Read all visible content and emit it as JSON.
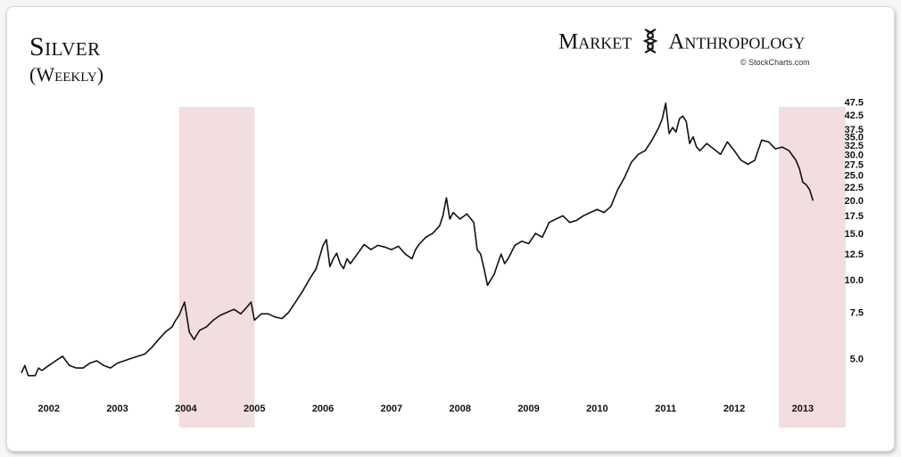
{
  "header": {
    "title": "Silver",
    "subtitle": "(Weekly)",
    "brand_left": "Market",
    "brand_right": "Anthropology",
    "copyright": "© StockCharts.com"
  },
  "chart_data": {
    "type": "line",
    "title": "Silver",
    "subtitle": "(Weekly)",
    "xlabel": "",
    "ylabel": "",
    "y_scale": "log",
    "ylim": [
      3.5,
      50
    ],
    "xlim": [
      2001.9,
      2013.9
    ],
    "grid": false,
    "line_color": "#111111",
    "highlight_color": "#f2dede",
    "x_ticks": [
      {
        "label": "2002",
        "value": 2002.3
      },
      {
        "label": "2003",
        "value": 2003.3
      },
      {
        "label": "2004",
        "value": 2004.3
      },
      {
        "label": "2005",
        "value": 2005.3
      },
      {
        "label": "2006",
        "value": 2006.3
      },
      {
        "label": "2007",
        "value": 2007.3
      },
      {
        "label": "2008",
        "value": 2008.3
      },
      {
        "label": "2009",
        "value": 2009.3
      },
      {
        "label": "2010",
        "value": 2010.3
      },
      {
        "label": "2011",
        "value": 2011.3
      },
      {
        "label": "2012",
        "value": 2012.3
      },
      {
        "label": "2013",
        "value": 2013.3
      }
    ],
    "y_ticks": [
      {
        "label": "5.0",
        "value": 5.0
      },
      {
        "label": "7.5",
        "value": 7.5
      },
      {
        "label": "10.0",
        "value": 10.0
      },
      {
        "label": "12.5",
        "value": 12.5
      },
      {
        "label": "15.0",
        "value": 15.0
      },
      {
        "label": "17.5",
        "value": 17.5
      },
      {
        "label": "20.0",
        "value": 20.0
      },
      {
        "label": "22.5",
        "value": 22.5
      },
      {
        "label": "25.0",
        "value": 25.0
      },
      {
        "label": "27.5",
        "value": 27.5
      },
      {
        "label": "30.0",
        "value": 30.0
      },
      {
        "label": "32.5",
        "value": 32.5
      },
      {
        "label": "35.0",
        "value": 35.0
      },
      {
        "label": "37.5",
        "value": 37.5
      },
      {
        "label": "42.5",
        "value": 42.5
      },
      {
        "label": "47.5",
        "value": 47.5
      }
    ],
    "highlight_ranges": [
      {
        "from": 2004.2,
        "to": 2005.3
      },
      {
        "from": 2012.95,
        "to": 2014.0
      }
    ],
    "series": [
      {
        "x": [
          2001.9,
          2001.95,
          2002.0,
          2002.1,
          2002.15,
          2002.2,
          2002.3,
          2002.4,
          2002.5,
          2002.6,
          2002.7,
          2002.8,
          2002.85,
          2002.9,
          2003.0,
          2003.1,
          2003.2,
          2003.3,
          2003.4,
          2003.5,
          2003.6,
          2003.7,
          2003.8,
          2003.9,
          2004.0,
          2004.1,
          2004.15,
          2004.2,
          2004.28,
          2004.35,
          2004.42,
          2004.45,
          2004.5,
          2004.6,
          2004.7,
          2004.8,
          2004.9,
          2005.0,
          2005.1,
          2005.2,
          2005.25,
          2005.3,
          2005.35,
          2005.4,
          2005.5,
          2005.6,
          2005.7,
          2005.8,
          2005.9,
          2006.0,
          2006.1,
          2006.2,
          2006.3,
          2006.35,
          2006.4,
          2006.45,
          2006.5,
          2006.55,
          2006.6,
          2006.65,
          2006.7,
          2006.8,
          2006.9,
          2007.0,
          2007.1,
          2007.2,
          2007.3,
          2007.4,
          2007.5,
          2007.6,
          2007.65,
          2007.7,
          2007.8,
          2007.9,
          2008.0,
          2008.05,
          2008.1,
          2008.15,
          2008.2,
          2008.3,
          2008.4,
          2008.5,
          2008.55,
          2008.6,
          2008.65,
          2008.7,
          2008.75,
          2008.8,
          2008.85,
          2008.9,
          2008.95,
          2009.0,
          2009.1,
          2009.2,
          2009.3,
          2009.4,
          2009.5,
          2009.6,
          2009.7,
          2009.8,
          2009.9,
          2010.0,
          2010.1,
          2010.2,
          2010.3,
          2010.4,
          2010.5,
          2010.6,
          2010.7,
          2010.8,
          2010.9,
          2011.0,
          2011.1,
          2011.2,
          2011.25,
          2011.3,
          2011.35,
          2011.4,
          2011.45,
          2011.5,
          2011.55,
          2011.6,
          2011.65,
          2011.7,
          2011.75,
          2011.8,
          2011.9,
          2012.0,
          2012.1,
          2012.2,
          2012.3,
          2012.4,
          2012.5,
          2012.6,
          2012.7,
          2012.8,
          2012.9,
          2013.0,
          2013.1,
          2013.2,
          2013.25,
          2013.3,
          2013.35,
          2013.4,
          2013.45
        ],
        "values": [
          4.4,
          4.7,
          4.3,
          4.3,
          4.6,
          4.5,
          4.7,
          4.9,
          5.1,
          4.7,
          4.6,
          4.6,
          4.7,
          4.8,
          4.9,
          4.7,
          4.6,
          4.8,
          4.9,
          5.0,
          5.1,
          5.2,
          5.5,
          5.9,
          6.3,
          6.6,
          7.0,
          7.3,
          8.2,
          6.3,
          5.9,
          6.1,
          6.4,
          6.6,
          7.0,
          7.3,
          7.5,
          7.7,
          7.4,
          7.9,
          8.2,
          7.0,
          7.2,
          7.4,
          7.4,
          7.2,
          7.1,
          7.5,
          8.2,
          9.0,
          10.0,
          11.0,
          13.5,
          14.2,
          11.2,
          12.0,
          12.6,
          11.5,
          11.0,
          12.0,
          11.5,
          12.5,
          13.6,
          13.0,
          13.5,
          13.3,
          13.0,
          13.4,
          12.5,
          12.0,
          13.0,
          13.6,
          14.5,
          15.0,
          16.0,
          17.5,
          20.5,
          17.0,
          18.0,
          17.0,
          17.8,
          16.5,
          13.0,
          12.5,
          11.0,
          9.5,
          10.0,
          10.5,
          11.5,
          12.5,
          11.5,
          12.0,
          13.5,
          14.0,
          13.7,
          15.0,
          14.5,
          16.5,
          17.0,
          17.5,
          16.5,
          16.8,
          17.5,
          18.0,
          18.5,
          18.0,
          19.0,
          22.0,
          24.5,
          28.0,
          30.0,
          31.0,
          34.0,
          38.0,
          41.0,
          47.0,
          36.0,
          38.0,
          36.5,
          41.0,
          42.0,
          40.0,
          33.0,
          35.0,
          32.0,
          31.0,
          33.0,
          31.5,
          30.0,
          33.5,
          31.0,
          28.5,
          27.5,
          28.5,
          34.0,
          33.5,
          31.5,
          32.0,
          31.0,
          28.5,
          26.5,
          23.5,
          23.0,
          22.0,
          20.0
        ]
      }
    ]
  }
}
